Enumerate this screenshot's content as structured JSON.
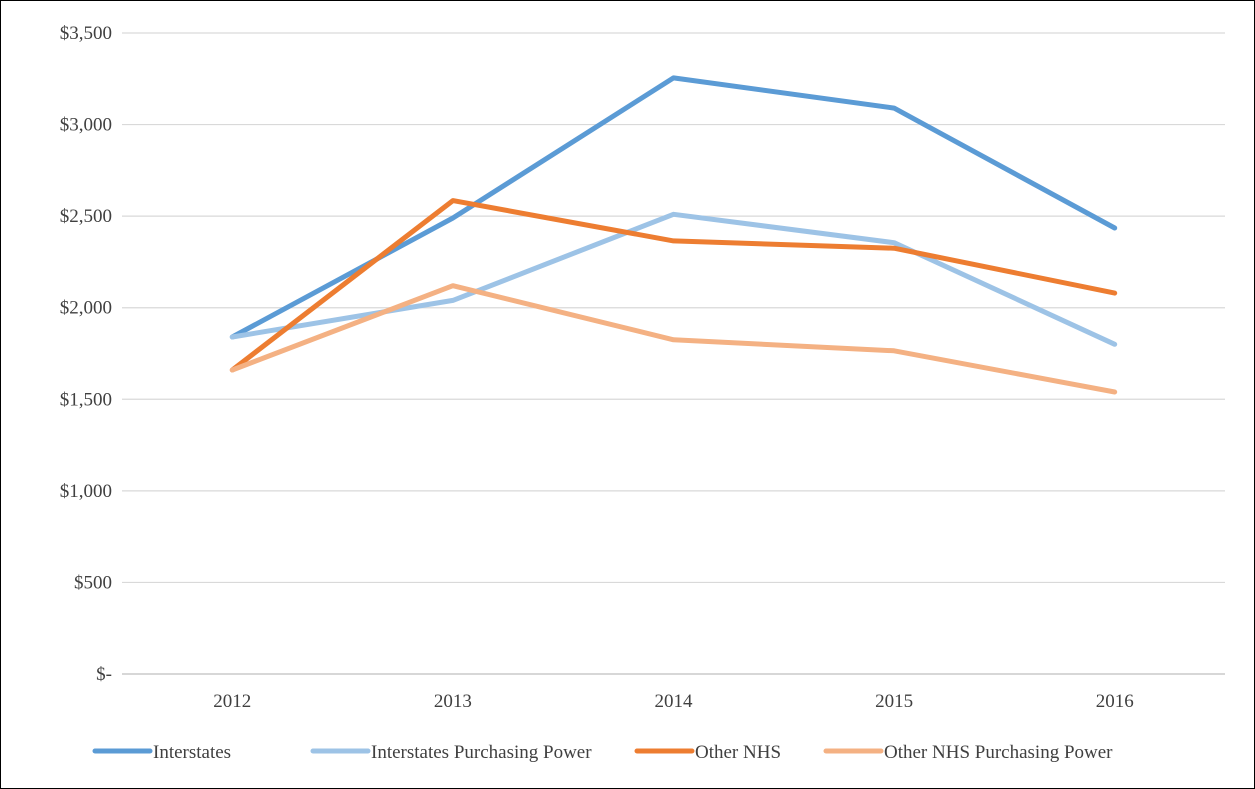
{
  "chart_data": {
    "type": "line",
    "categories": [
      "2012",
      "2013",
      "2014",
      "2015",
      "2016"
    ],
    "y_ticks": [
      {
        "value": 0,
        "label": "$-"
      },
      {
        "value": 500,
        "label": "$500"
      },
      {
        "value": 1000,
        "label": "$1,000"
      },
      {
        "value": 1500,
        "label": "$1,500"
      },
      {
        "value": 2000,
        "label": "$2,000"
      },
      {
        "value": 2500,
        "label": "$2,500"
      },
      {
        "value": 3000,
        "label": "$3,000"
      },
      {
        "value": 3500,
        "label": "$3,500"
      }
    ],
    "ylim": [
      0,
      3500
    ],
    "grid": true,
    "legend_position": "bottom",
    "series": [
      {
        "name": "Interstates",
        "color": "#5b9bd5",
        "values": [
          1840,
          2490,
          3255,
          3090,
          2435
        ]
      },
      {
        "name": "Interstates Purchasing Power",
        "color": "#9dc3e6",
        "values": [
          1840,
          2040,
          2510,
          2355,
          1800
        ]
      },
      {
        "name": "Other NHS",
        "color": "#ed7d31",
        "values": [
          1660,
          2585,
          2365,
          2325,
          2080
        ]
      },
      {
        "name": "Other NHS Purchasing Power",
        "color": "#f4b183",
        "values": [
          1660,
          2120,
          1825,
          1765,
          1540
        ]
      }
    ]
  }
}
